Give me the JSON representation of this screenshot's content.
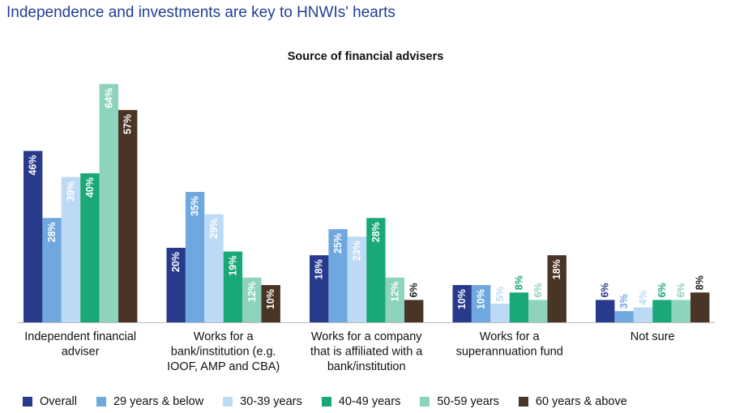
{
  "page_title": "Independence and investments are key to HNWIs' hearts",
  "colors": [
    "#283a8c",
    "#6fa8df",
    "#bcdaf5",
    "#1aa878",
    "#8dd3bd",
    "#4a3425"
  ],
  "chart_data": {
    "type": "bar",
    "title": "Source of financial advisers",
    "categories": [
      [
        "Independent financial",
        "adviser"
      ],
      [
        "Works for a",
        "bank/institution (e.g.",
        "IOOF, AMP and CBA)"
      ],
      [
        "Works for a company",
        "that is affiliated with a",
        "bank/institution"
      ],
      [
        "Works for a",
        "superannuation fund"
      ],
      [
        "Not sure"
      ]
    ],
    "series": [
      {
        "name": "Overall",
        "values": [
          46,
          20,
          18,
          10,
          6
        ]
      },
      {
        "name": "29 years & below",
        "values": [
          28,
          35,
          25,
          10,
          3
        ]
      },
      {
        "name": "30-39 years",
        "values": [
          39,
          29,
          23,
          5,
          4
        ]
      },
      {
        "name": "40-49 years",
        "values": [
          40,
          19,
          28,
          8,
          6
        ]
      },
      {
        "name": "50-59 years",
        "values": [
          64,
          12,
          12,
          6,
          6
        ]
      },
      {
        "name": "60 years & above",
        "values": [
          57,
          10,
          6,
          18,
          8
        ]
      }
    ],
    "value_suffix": "%",
    "legend_position": "bottom",
    "grid": false
  }
}
